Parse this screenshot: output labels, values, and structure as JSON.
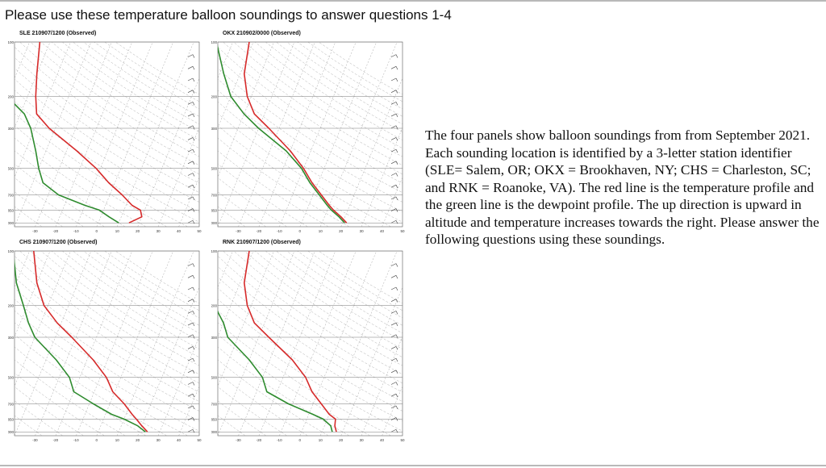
{
  "page": {
    "heading": "Please use these temperature balloon soundings to answer questions 1-4",
    "description": "The four panels show balloon soundings from from September 2021. Each sounding location is identified by a 3-letter station identifier (SLE= Salem, OR; OKX = Brookhaven, NY; CHS = Charleston, SC; and RNK = Roanoke, VA). The red line is the temperature profile and the green line is the dewpoint profile. The up direction is upward in altitude and temperature increases towards the right. Please answer the following questions using these soundings."
  },
  "colors": {
    "temperature": "#d62a2a",
    "dewpoint": "#2e8b2e",
    "parcel": "#8b1a1a",
    "wetbulb": "#5a7fd6",
    "grid": "#9a9a9a",
    "heading_text": "#111111"
  },
  "pressure_labels": [
    "100",
    "200",
    "300",
    "500",
    "700",
    "850",
    "1000"
  ],
  "temp_labels": [
    "-30",
    "-20",
    "-10",
    "0",
    "10",
    "20",
    "30",
    "40",
    "50"
  ],
  "soundings": [
    {
      "title": "SLE  210907/1200  (Observed)",
      "temperature": [
        [
          1000,
          15
        ],
        [
          925,
          20
        ],
        [
          850,
          18
        ],
        [
          800,
          13
        ],
        [
          700,
          6
        ],
        [
          600,
          -3
        ],
        [
          500,
          -12
        ],
        [
          400,
          -25
        ],
        [
          300,
          -43
        ],
        [
          250,
          -52
        ],
        [
          200,
          -56
        ],
        [
          150,
          -60
        ],
        [
          100,
          -65
        ]
      ],
      "dewpoint": [
        [
          1000,
          10
        ],
        [
          925,
          4
        ],
        [
          850,
          -2
        ],
        [
          800,
          -10
        ],
        [
          700,
          -25
        ],
        [
          600,
          -35
        ],
        [
          500,
          -40
        ],
        [
          400,
          -45
        ],
        [
          300,
          -52
        ],
        [
          250,
          -58
        ],
        [
          200,
          -70
        ],
        [
          150,
          -72
        ],
        [
          100,
          -78
        ]
      ]
    },
    {
      "title": "OKX  210902/0000  (Observed)",
      "temperature": [
        [
          1000,
          22
        ],
        [
          925,
          18
        ],
        [
          850,
          13
        ],
        [
          800,
          10
        ],
        [
          700,
          4
        ],
        [
          600,
          -3
        ],
        [
          500,
          -10
        ],
        [
          400,
          -20
        ],
        [
          300,
          -35
        ],
        [
          250,
          -45
        ],
        [
          200,
          -52
        ],
        [
          150,
          -58
        ],
        [
          100,
          -62
        ]
      ],
      "dewpoint": [
        [
          1000,
          21
        ],
        [
          925,
          17
        ],
        [
          850,
          12
        ],
        [
          800,
          9
        ],
        [
          700,
          3
        ],
        [
          600,
          -4
        ],
        [
          500,
          -11
        ],
        [
          400,
          -22
        ],
        [
          300,
          -40
        ],
        [
          250,
          -50
        ],
        [
          200,
          -60
        ],
        [
          150,
          -68
        ],
        [
          100,
          -78
        ]
      ]
    },
    {
      "title": "CHS  210907/1200  (Observed)",
      "temperature": [
        [
          1000,
          24
        ],
        [
          925,
          20
        ],
        [
          850,
          16
        ],
        [
          800,
          13
        ],
        [
          700,
          7
        ],
        [
          600,
          -1
        ],
        [
          500,
          -7
        ],
        [
          400,
          -17
        ],
        [
          300,
          -32
        ],
        [
          250,
          -42
        ],
        [
          200,
          -52
        ],
        [
          150,
          -60
        ],
        [
          100,
          -68
        ]
      ],
      "dewpoint": [
        [
          1000,
          23
        ],
        [
          925,
          18
        ],
        [
          850,
          10
        ],
        [
          800,
          3
        ],
        [
          700,
          -8
        ],
        [
          600,
          -20
        ],
        [
          500,
          -25
        ],
        [
          400,
          -35
        ],
        [
          300,
          -50
        ],
        [
          250,
          -56
        ],
        [
          200,
          -62
        ],
        [
          150,
          -70
        ],
        [
          100,
          -78
        ]
      ]
    },
    {
      "title": "RNK  210907/1200  (Observed)",
      "temperature": [
        [
          1000,
          17
        ],
        [
          925,
          15
        ],
        [
          850,
          14
        ],
        [
          800,
          10
        ],
        [
          700,
          4
        ],
        [
          600,
          -3
        ],
        [
          500,
          -9
        ],
        [
          400,
          -19
        ],
        [
          300,
          -35
        ],
        [
          250,
          -45
        ],
        [
          200,
          -52
        ],
        [
          150,
          -58
        ],
        [
          100,
          -62
        ]
      ],
      "dewpoint": [
        [
          1000,
          15
        ],
        [
          925,
          13
        ],
        [
          850,
          8
        ],
        [
          800,
          2
        ],
        [
          700,
          -12
        ],
        [
          600,
          -25
        ],
        [
          500,
          -30
        ],
        [
          400,
          -40
        ],
        [
          300,
          -55
        ],
        [
          250,
          -60
        ],
        [
          200,
          -68
        ],
        [
          150,
          -72
        ],
        [
          100,
          -78
        ]
      ]
    }
  ]
}
